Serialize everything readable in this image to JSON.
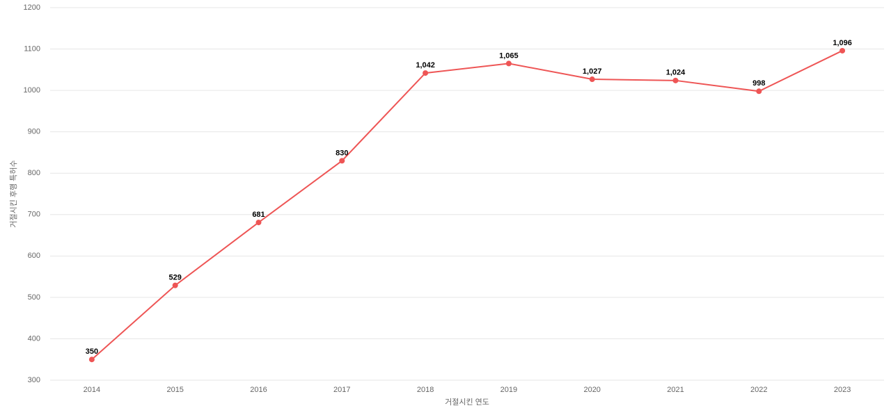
{
  "chart_data": {
    "type": "line",
    "x_label": "거절시킨 연도",
    "y_label": "거절시킨 후행 특허수",
    "categories": [
      "2014",
      "2015",
      "2016",
      "2017",
      "2018",
      "2019",
      "2020",
      "2021",
      "2022",
      "2023"
    ],
    "series": [
      {
        "color": "#ee5555",
        "values": [
          350,
          529,
          681,
          830,
          1042,
          1065,
          1027,
          1024,
          998,
          1096
        ],
        "value_labels": [
          "350",
          "529",
          "681",
          "830",
          "1,042",
          "1,065",
          "1,027",
          "1,024",
          "998",
          "1,096"
        ]
      }
    ],
    "ylim": [
      300,
      1200
    ],
    "yticks": [
      300,
      400,
      500,
      600,
      700,
      800,
      900,
      1000,
      1100,
      1200
    ],
    "grid": true
  }
}
